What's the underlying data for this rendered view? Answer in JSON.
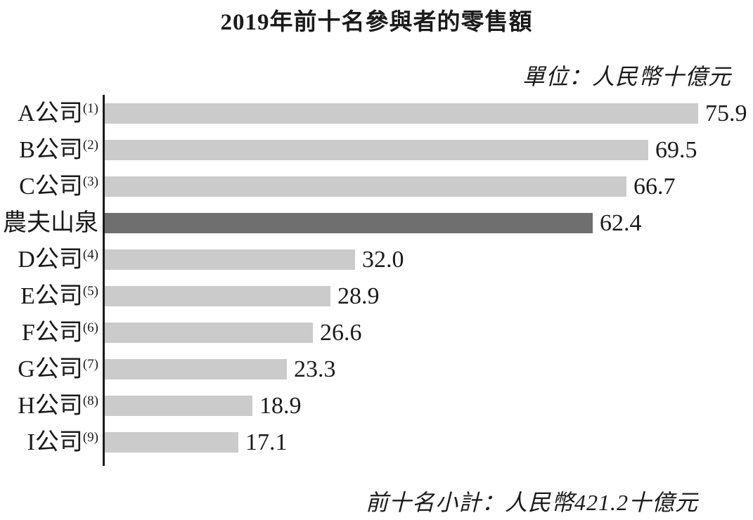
{
  "chart_data": {
    "type": "bar",
    "orientation": "horizontal",
    "title": "2019年前十名參與者的零售額",
    "unit_label": "單位：人民幣十億元",
    "subtotal_label": "前十名小計：人民幣421.2十億元",
    "categories": [
      {
        "label": "A公司",
        "ref": "(1)"
      },
      {
        "label": "B公司",
        "ref": "(2)"
      },
      {
        "label": "C公司",
        "ref": "(3)"
      },
      {
        "label": "農夫山泉",
        "ref": ""
      },
      {
        "label": "D公司",
        "ref": "(4)"
      },
      {
        "label": "E公司",
        "ref": "(5)"
      },
      {
        "label": "F公司",
        "ref": "(6)"
      },
      {
        "label": "G公司",
        "ref": "(7)"
      },
      {
        "label": "H公司",
        "ref": "(8)"
      },
      {
        "label": "I公司",
        "ref": "(9)"
      }
    ],
    "values": [
      75.9,
      69.5,
      66.7,
      62.4,
      32.0,
      28.9,
      26.6,
      23.3,
      18.9,
      17.1
    ],
    "value_labels": [
      "75.9",
      "69.5",
      "66.7",
      "62.4",
      "32.0",
      "28.9",
      "26.6",
      "23.3",
      "18.9",
      "17.1"
    ],
    "highlight_index": 3,
    "xlim": [
      0,
      75.9
    ],
    "grid": false,
    "legend": "none",
    "colors": {
      "bar": "#cbcbcb",
      "highlight_bar": "#6f6f6f",
      "axis": "#1a1a1a",
      "text": "#1a1a1a"
    }
  }
}
